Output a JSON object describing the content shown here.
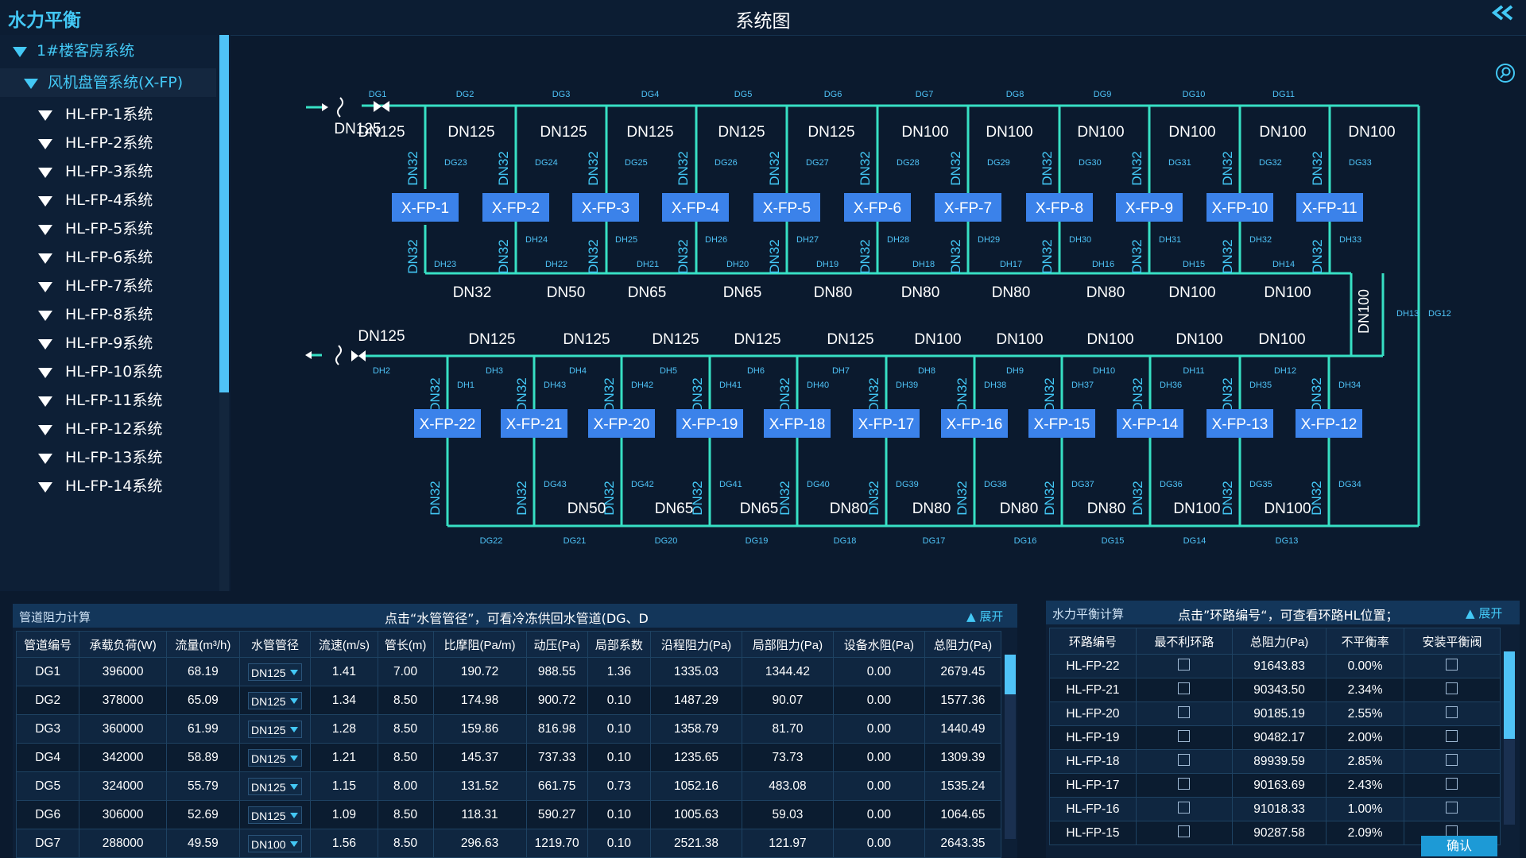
{
  "app_title": "水力平衡",
  "page_title": "系统图",
  "sidebar": {
    "root": "1#楼客房系统",
    "group": "风机盘管系统(X-FP)",
    "items": [
      "HL-FP-1系统",
      "HL-FP-2系统",
      "HL-FP-3系统",
      "HL-FP-4系统",
      "HL-FP-5系统",
      "HL-FP-6系统",
      "HL-FP-7系统",
      "HL-FP-8系统",
      "HL-FP-9系统",
      "HL-FP-10系统",
      "HL-FP-11系统",
      "HL-FP-12系统",
      "HL-FP-13系统",
      "HL-FP-14系统"
    ]
  },
  "diagram": {
    "top_units": [
      "X-FP-1",
      "X-FP-2",
      "X-FP-3",
      "X-FP-4",
      "X-FP-5",
      "X-FP-6",
      "X-FP-7",
      "X-FP-8",
      "X-FP-9",
      "X-FP-10",
      "X-FP-11"
    ],
    "bottom_units": [
      "X-FP-22",
      "X-FP-21",
      "X-FP-20",
      "X-FP-19",
      "X-FP-18",
      "X-FP-17",
      "X-FP-16",
      "X-FP-15",
      "X-FP-14",
      "X-FP-13",
      "X-FP-12"
    ],
    "top_supply_tags": [
      "DG1",
      "DG2",
      "DG3",
      "DG4",
      "DG5",
      "DG6",
      "DG7",
      "DG8",
      "DG9",
      "DG10",
      "DG11"
    ],
    "top_supply_sizes": [
      "DN125",
      "DN125",
      "DN125",
      "DN125",
      "DN125",
      "DN125",
      "DN100",
      "DN100",
      "DN100",
      "DN100",
      "DN100",
      "DN100"
    ],
    "top_branch_supply_tags": [
      "DG23",
      "DG24",
      "DG25",
      "DG26",
      "DG27",
      "DG28",
      "DG29",
      "DG30",
      "DG31",
      "DG32",
      "DG33"
    ],
    "top_branch_return_tags": [
      "DH24",
      "DH25",
      "DH26",
      "DH27",
      "DH28",
      "DH29",
      "DH30",
      "DH31",
      "DH32",
      "DH33"
    ],
    "top_return_tags": [
      "DH23",
      "DH22",
      "DH21",
      "DH20",
      "DH19",
      "DH18",
      "DH17",
      "DH16",
      "DH15",
      "DH14"
    ],
    "top_return_sizes": [
      "DN32",
      "DN50",
      "DN65",
      "DN65",
      "DN80",
      "DN80",
      "DN80",
      "DN80",
      "DN100",
      "DN100"
    ],
    "riser_return_tag": "DH13",
    "riser_return_size": "DN100",
    "riser_supply_tag": "DG12",
    "bottom_return_main_size": "DN125",
    "bottom_return_sizes": [
      "DN125",
      "DN125",
      "DN125",
      "DN125",
      "DN125",
      "DN100",
      "DN100",
      "DN100",
      "DN100",
      "DN100"
    ],
    "bottom_return_tags": [
      "DH2",
      "DH3",
      "DH4",
      "DH5",
      "DH6",
      "DH7",
      "DH8",
      "DH9",
      "DH10",
      "DH11",
      "DH12"
    ],
    "bottom_branch_return_tags": [
      "DH1",
      "DH43",
      "DH42",
      "DH41",
      "DH40",
      "DH39",
      "DH38",
      "DH37",
      "DH36",
      "DH35",
      "DH34"
    ],
    "bottom_branch_supply_tags": [
      "DG43",
      "DG42",
      "DG41",
      "DG40",
      "DG39",
      "DG38",
      "DG37",
      "DG36",
      "DG35",
      "DG34"
    ],
    "bottom_supply_sizes": [
      "DN50",
      "DN65",
      "DN65",
      "DN80",
      "DN80",
      "DN80",
      "DN80",
      "DN100",
      "DN100"
    ],
    "bottom_supply_tags": [
      "DG22",
      "DG21",
      "DG20",
      "DG19",
      "DG18",
      "DG17",
      "DG16",
      "DG15",
      "DG14",
      "DG13"
    ],
    "branch_size": "DN32",
    "colors": {
      "pipe": "#37e0c4",
      "unit_bg": "#3b82ea",
      "text": "#ffffff",
      "tag": "#4fc3f7"
    }
  },
  "pipe_panel": {
    "title": "管道阻力计算",
    "hint": "点击“水管管径”，可看冷冻供回水管道(DG、D",
    "expand": "展开",
    "headers": [
      "管道编号",
      "承载负荷(W)",
      "流量(m³/h)",
      "水管管径",
      "流速(m/s)",
      "管长(m)",
      "比摩阻(Pa/m)",
      "动压(Pa)",
      "局部系数",
      "沿程阻力(Pa)",
      "局部阻力(Pa)",
      "设备水阻(Pa)",
      "总阻力(Pa)"
    ],
    "rows": [
      [
        "DG1",
        "396000",
        "68.19",
        "DN125",
        "1.41",
        "7.00",
        "190.72",
        "988.55",
        "1.36",
        "1335.03",
        "1344.42",
        "0.00",
        "2679.45"
      ],
      [
        "DG2",
        "378000",
        "65.09",
        "DN125",
        "1.34",
        "8.50",
        "174.98",
        "900.72",
        "0.10",
        "1487.29",
        "90.07",
        "0.00",
        "1577.36"
      ],
      [
        "DG3",
        "360000",
        "61.99",
        "DN125",
        "1.28",
        "8.50",
        "159.86",
        "816.98",
        "0.10",
        "1358.79",
        "81.70",
        "0.00",
        "1440.49"
      ],
      [
        "DG4",
        "342000",
        "58.89",
        "DN125",
        "1.21",
        "8.50",
        "145.37",
        "737.33",
        "0.10",
        "1235.65",
        "73.73",
        "0.00",
        "1309.39"
      ],
      [
        "DG5",
        "324000",
        "55.79",
        "DN125",
        "1.15",
        "8.00",
        "131.52",
        "661.75",
        "0.73",
        "1052.16",
        "483.08",
        "0.00",
        "1535.24"
      ],
      [
        "DG6",
        "306000",
        "52.69",
        "DN125",
        "1.09",
        "8.50",
        "118.31",
        "590.27",
        "0.10",
        "1005.63",
        "59.03",
        "0.00",
        "1064.65"
      ],
      [
        "DG7",
        "288000",
        "49.59",
        "DN100",
        "1.56",
        "8.50",
        "296.63",
        "1219.70",
        "0.10",
        "2521.38",
        "121.97",
        "0.00",
        "2643.35"
      ]
    ]
  },
  "balance_panel": {
    "title": "水力平衡计算",
    "hint": "点击”环路编号“，可查看环路HL位置；",
    "expand": "展开",
    "headers": [
      "环路编号",
      "最不利环路",
      "总阻力(Pa)",
      "不平衡率",
      "安装平衡阀"
    ],
    "rows": [
      [
        "HL-FP-22",
        "91643.83",
        "0.00%"
      ],
      [
        "HL-FP-21",
        "90343.50",
        "2.34%"
      ],
      [
        "HL-FP-20",
        "90185.19",
        "2.55%"
      ],
      [
        "HL-FP-19",
        "90482.17",
        "2.00%"
      ],
      [
        "HL-FP-18",
        "89939.59",
        "2.85%"
      ],
      [
        "HL-FP-17",
        "90163.69",
        "2.43%"
      ],
      [
        "HL-FP-16",
        "91018.33",
        "1.00%"
      ],
      [
        "HL-FP-15",
        "90287.58",
        "2.09%"
      ]
    ],
    "confirm": "确认"
  }
}
